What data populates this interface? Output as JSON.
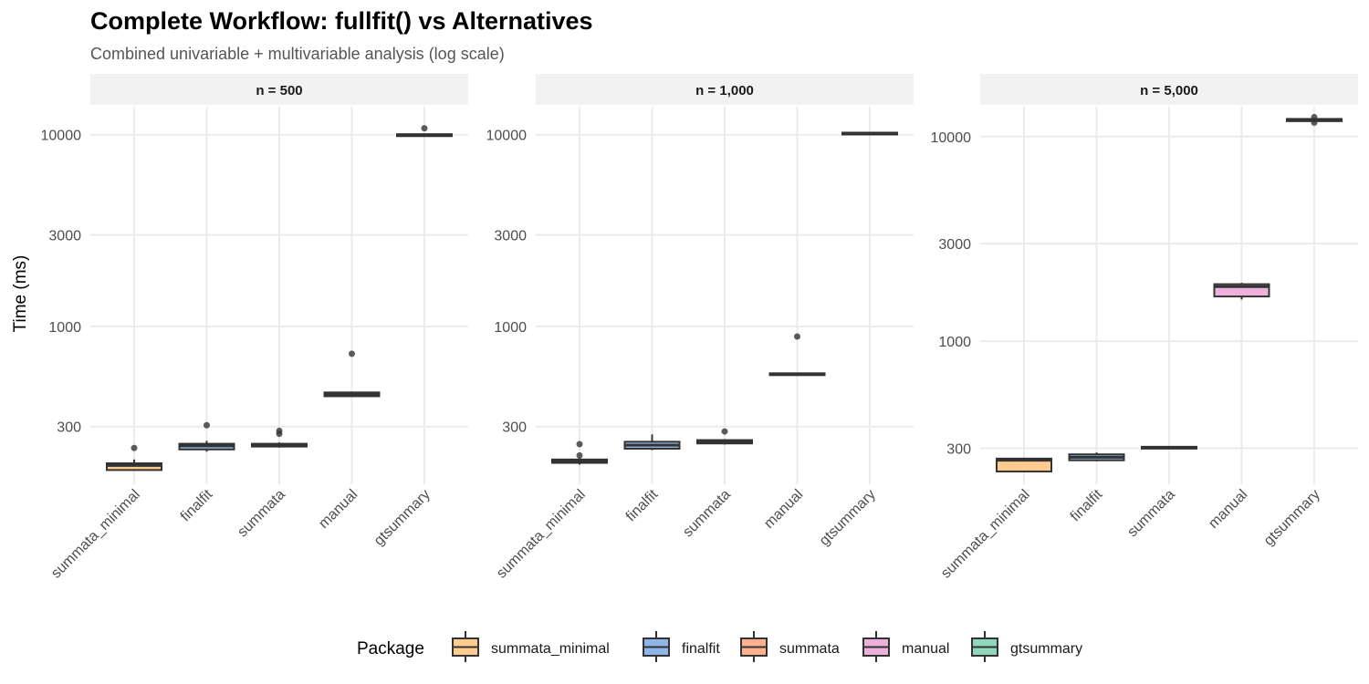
{
  "chart_data": {
    "type": "boxplot",
    "title": "Complete Workflow: fullfit() vs Alternatives",
    "subtitle": "Combined univariable + multivariable analysis (log scale)",
    "ylabel": "Time (ms)",
    "xlabel": "",
    "scale": "log10",
    "legend": {
      "title": "Package",
      "position": "bottom",
      "entries": [
        {
          "label": "summata_minimal",
          "color": "#FFCC8F"
        },
        {
          "label": "finalfit",
          "color": "#8FB6E6"
        },
        {
          "label": "summata",
          "color": "#FFB08F"
        },
        {
          "label": "manual",
          "color": "#EEB1DC"
        },
        {
          "label": "gtsummary",
          "color": "#8FD6BB"
        }
      ]
    },
    "categories": [
      "summata_minimal",
      "finalfit",
      "summata",
      "manual",
      "gtsummary"
    ],
    "panels": [
      {
        "label": "n = 500",
        "ylim": [
          150,
          14000
        ],
        "yticks": [
          {
            "value": 300,
            "label": "300"
          },
          {
            "value": 1000,
            "label": "1000"
          },
          {
            "value": 3000,
            "label": "3000"
          },
          {
            "value": 10000,
            "label": "10000"
          }
        ],
        "boxes": [
          {
            "q1": 178,
            "median": 188,
            "q3": 193,
            "low": 178,
            "high": 202,
            "outliers": [
              232
            ]
          },
          {
            "q1": 228,
            "median": 238,
            "q3": 244,
            "low": 222,
            "high": 253,
            "outliers": [
              305
            ]
          },
          {
            "q1": 236,
            "median": 240,
            "q3": 244,
            "low": 233,
            "high": 248,
            "outliers": [
              275,
              285
            ]
          },
          {
            "q1": 432,
            "median": 443,
            "q3": 452,
            "low": 428,
            "high": 457,
            "outliers": [
              720
            ]
          },
          {
            "q1": 9950,
            "median": 10000,
            "q3": 10050,
            "low": 9900,
            "high": 10150,
            "outliers": [
              10800
            ]
          }
        ]
      },
      {
        "label": "n = 1,000",
        "ylim": [
          150,
          14000
        ],
        "yticks": [
          {
            "value": 300,
            "label": "300"
          },
          {
            "value": 1000,
            "label": "1000"
          },
          {
            "value": 3000,
            "label": "3000"
          },
          {
            "value": 10000,
            "label": "10000"
          }
        ],
        "boxes": [
          {
            "q1": 194,
            "median": 198,
            "q3": 202,
            "low": 190,
            "high": 205,
            "outliers": [
              212,
              243
            ]
          },
          {
            "q1": 230,
            "median": 240,
            "q3": 250,
            "low": 226,
            "high": 273,
            "outliers": []
          },
          {
            "q1": 245,
            "median": 250,
            "q3": 255,
            "low": 242,
            "high": 258,
            "outliers": [
              283
            ]
          },
          {
            "q1": 557,
            "median": 563,
            "q3": 569,
            "low": 553,
            "high": 572,
            "outliers": [
              885
            ]
          },
          {
            "q1": 10100,
            "median": 10180,
            "q3": 10250,
            "low": 10050,
            "high": 10300,
            "outliers": []
          }
        ]
      },
      {
        "label": "n = 5,000",
        "ylim": [
          200,
          14000
        ],
        "yticks": [
          {
            "value": 300,
            "label": "300"
          },
          {
            "value": 1000,
            "label": "1000"
          },
          {
            "value": 3000,
            "label": "3000"
          },
          {
            "value": 10000,
            "label": "10000"
          }
        ],
        "boxes": [
          {
            "q1": 231,
            "median": 262,
            "q3": 267,
            "low": 231,
            "high": 269,
            "outliers": []
          },
          {
            "q1": 262,
            "median": 271,
            "q3": 280,
            "low": 259,
            "high": 286,
            "outliers": []
          },
          {
            "q1": 300,
            "median": 302,
            "q3": 305,
            "low": 298,
            "high": 307,
            "outliers": []
          },
          {
            "q1": 1655,
            "median": 1850,
            "q3": 1900,
            "low": 1600,
            "high": 1930,
            "outliers": []
          },
          {
            "q1": 11900,
            "median": 12050,
            "q3": 12200,
            "low": 11800,
            "high": 12350,
            "outliers": [
              11700,
              12450
            ]
          }
        ]
      }
    ]
  }
}
